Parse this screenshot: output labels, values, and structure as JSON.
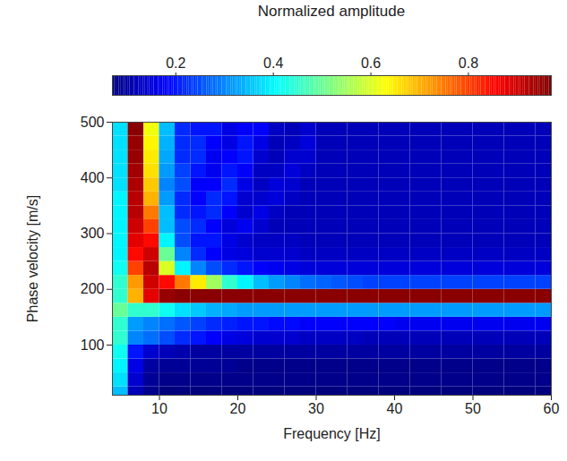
{
  "chart_data": {
    "type": "heatmap",
    "xlabel": "Frequency [Hz]",
    "ylabel": "Phase velocity [m/s]",
    "xlim": [
      4,
      60
    ],
    "ylim": [
      10,
      500
    ],
    "xticks": [
      10,
      20,
      30,
      40,
      50,
      60
    ],
    "yticks": [
      100,
      200,
      300,
      400,
      500
    ],
    "x_bins": [
      4,
      6,
      8,
      10,
      12,
      14,
      16,
      18,
      20,
      22,
      24,
      26,
      28,
      30,
      32,
      34,
      36,
      38,
      40,
      42,
      44,
      46,
      48,
      50,
      52,
      54,
      56,
      58,
      60
    ],
    "y_bins": [
      0,
      25,
      50,
      75,
      100,
      125,
      150,
      175,
      200,
      225,
      250,
      275,
      300,
      325,
      350,
      375,
      400,
      425,
      450,
      475,
      500
    ],
    "values": [
      [
        0.35,
        0.12,
        0.08,
        0.07,
        0.07,
        0.07,
        0.07,
        0.07,
        0.07,
        0.07,
        0.07,
        0.07,
        0.07,
        0.07,
        0.07,
        0.07,
        0.07,
        0.07,
        0.07,
        0.07,
        0.07,
        0.07,
        0.07,
        0.07,
        0.07,
        0.07,
        0.07,
        0.07
      ],
      [
        0.38,
        0.14,
        0.09,
        0.08,
        0.08,
        0.08,
        0.08,
        0.08,
        0.08,
        0.08,
        0.08,
        0.08,
        0.08,
        0.08,
        0.08,
        0.08,
        0.08,
        0.08,
        0.08,
        0.08,
        0.08,
        0.08,
        0.08,
        0.08,
        0.08,
        0.08,
        0.08,
        0.08
      ],
      [
        0.4,
        0.16,
        0.1,
        0.09,
        0.09,
        0.09,
        0.09,
        0.09,
        0.08,
        0.08,
        0.08,
        0.08,
        0.08,
        0.08,
        0.08,
        0.08,
        0.08,
        0.08,
        0.08,
        0.08,
        0.08,
        0.08,
        0.08,
        0.08,
        0.08,
        0.08,
        0.08,
        0.08
      ],
      [
        0.42,
        0.2,
        0.14,
        0.12,
        0.11,
        0.1,
        0.1,
        0.1,
        0.1,
        0.1,
        0.1,
        0.1,
        0.1,
        0.1,
        0.1,
        0.1,
        0.1,
        0.1,
        0.1,
        0.1,
        0.1,
        0.1,
        0.1,
        0.1,
        0.1,
        0.1,
        0.1,
        0.1
      ],
      [
        0.45,
        0.3,
        0.28,
        0.25,
        0.22,
        0.2,
        0.18,
        0.16,
        0.15,
        0.14,
        0.14,
        0.14,
        0.13,
        0.13,
        0.13,
        0.13,
        0.12,
        0.12,
        0.12,
        0.12,
        0.12,
        0.12,
        0.12,
        0.12,
        0.12,
        0.12,
        0.12,
        0.12
      ],
      [
        0.45,
        0.32,
        0.3,
        0.28,
        0.26,
        0.24,
        0.22,
        0.21,
        0.2,
        0.2,
        0.19,
        0.19,
        0.18,
        0.18,
        0.18,
        0.18,
        0.18,
        0.18,
        0.17,
        0.17,
        0.17,
        0.17,
        0.17,
        0.17,
        0.17,
        0.17,
        0.17,
        0.17
      ],
      [
        0.5,
        0.45,
        0.45,
        0.42,
        0.38,
        0.36,
        0.34,
        0.33,
        0.32,
        0.32,
        0.32,
        0.32,
        0.32,
        0.32,
        0.32,
        0.32,
        0.32,
        0.32,
        0.32,
        0.32,
        0.32,
        0.32,
        0.32,
        0.32,
        0.32,
        0.32,
        0.32,
        0.32
      ],
      [
        0.45,
        0.7,
        0.88,
        0.95,
        0.96,
        0.96,
        0.96,
        0.96,
        0.96,
        0.96,
        0.96,
        0.96,
        0.96,
        0.96,
        0.96,
        0.96,
        0.96,
        0.96,
        0.96,
        0.96,
        0.96,
        0.96,
        0.96,
        0.96,
        0.96,
        0.96,
        0.96,
        0.96
      ],
      [
        0.45,
        0.72,
        0.9,
        0.85,
        0.75,
        0.65,
        0.55,
        0.45,
        0.4,
        0.35,
        0.32,
        0.3,
        0.28,
        0.27,
        0.26,
        0.25,
        0.24,
        0.24,
        0.24,
        0.24,
        0.24,
        0.24,
        0.24,
        0.24,
        0.24,
        0.24,
        0.24,
        0.24
      ],
      [
        0.42,
        0.8,
        0.92,
        0.6,
        0.4,
        0.3,
        0.25,
        0.22,
        0.2,
        0.18,
        0.17,
        0.16,
        0.15,
        0.15,
        0.15,
        0.15,
        0.15,
        0.15,
        0.15,
        0.15,
        0.15,
        0.15,
        0.15,
        0.15,
        0.15,
        0.15,
        0.15,
        0.15
      ],
      [
        0.4,
        0.85,
        0.9,
        0.5,
        0.3,
        0.22,
        0.18,
        0.16,
        0.15,
        0.14,
        0.14,
        0.14,
        0.13,
        0.13,
        0.13,
        0.13,
        0.13,
        0.13,
        0.13,
        0.13,
        0.13,
        0.13,
        0.13,
        0.13,
        0.13,
        0.13,
        0.13,
        0.13
      ],
      [
        0.4,
        0.88,
        0.85,
        0.4,
        0.25,
        0.2,
        0.2,
        0.16,
        0.14,
        0.13,
        0.13,
        0.13,
        0.12,
        0.12,
        0.12,
        0.12,
        0.12,
        0.12,
        0.12,
        0.12,
        0.12,
        0.12,
        0.12,
        0.12,
        0.12,
        0.12,
        0.12,
        0.12
      ],
      [
        0.4,
        0.9,
        0.8,
        0.35,
        0.25,
        0.22,
        0.18,
        0.15,
        0.17,
        0.14,
        0.12,
        0.12,
        0.12,
        0.12,
        0.12,
        0.12,
        0.12,
        0.12,
        0.12,
        0.12,
        0.12,
        0.12,
        0.12,
        0.12,
        0.12,
        0.12,
        0.12,
        0.12
      ],
      [
        0.4,
        0.92,
        0.75,
        0.35,
        0.22,
        0.2,
        0.22,
        0.18,
        0.14,
        0.16,
        0.13,
        0.12,
        0.12,
        0.12,
        0.12,
        0.12,
        0.12,
        0.12,
        0.12,
        0.12,
        0.12,
        0.12,
        0.12,
        0.12,
        0.12,
        0.12,
        0.12,
        0.12
      ],
      [
        0.4,
        0.92,
        0.7,
        0.32,
        0.22,
        0.18,
        0.22,
        0.2,
        0.14,
        0.14,
        0.15,
        0.13,
        0.12,
        0.12,
        0.12,
        0.12,
        0.12,
        0.12,
        0.12,
        0.12,
        0.12,
        0.12,
        0.12,
        0.12,
        0.12,
        0.12,
        0.12,
        0.12
      ],
      [
        0.38,
        0.93,
        0.68,
        0.3,
        0.25,
        0.18,
        0.18,
        0.22,
        0.16,
        0.13,
        0.15,
        0.14,
        0.12,
        0.12,
        0.12,
        0.12,
        0.12,
        0.12,
        0.12,
        0.12,
        0.12,
        0.12,
        0.12,
        0.12,
        0.12,
        0.12,
        0.12,
        0.12
      ],
      [
        0.38,
        0.94,
        0.66,
        0.32,
        0.24,
        0.2,
        0.17,
        0.2,
        0.18,
        0.13,
        0.13,
        0.15,
        0.13,
        0.12,
        0.12,
        0.12,
        0.12,
        0.12,
        0.12,
        0.12,
        0.12,
        0.12,
        0.12,
        0.12,
        0.12,
        0.12,
        0.12,
        0.12
      ],
      [
        0.38,
        0.95,
        0.65,
        0.33,
        0.22,
        0.22,
        0.17,
        0.18,
        0.2,
        0.14,
        0.12,
        0.14,
        0.14,
        0.12,
        0.12,
        0.12,
        0.12,
        0.12,
        0.12,
        0.12,
        0.12,
        0.12,
        0.12,
        0.12,
        0.12,
        0.12,
        0.12,
        0.12
      ],
      [
        0.38,
        0.95,
        0.64,
        0.34,
        0.22,
        0.22,
        0.18,
        0.16,
        0.2,
        0.16,
        0.12,
        0.13,
        0.15,
        0.12,
        0.12,
        0.12,
        0.12,
        0.12,
        0.12,
        0.12,
        0.12,
        0.12,
        0.12,
        0.12,
        0.12,
        0.12,
        0.12,
        0.12
      ],
      [
        0.38,
        0.96,
        0.62,
        0.35,
        0.22,
        0.2,
        0.2,
        0.16,
        0.18,
        0.18,
        0.13,
        0.12,
        0.14,
        0.12,
        0.12,
        0.12,
        0.12,
        0.12,
        0.12,
        0.12,
        0.12,
        0.12,
        0.12,
        0.12,
        0.12,
        0.12,
        0.12,
        0.12
      ]
    ],
    "colorbar": {
      "label": "Normalized amplitude",
      "range": [
        0.07,
        0.97
      ],
      "ticks": [
        0.2,
        0.4,
        0.6,
        0.8
      ]
    }
  }
}
